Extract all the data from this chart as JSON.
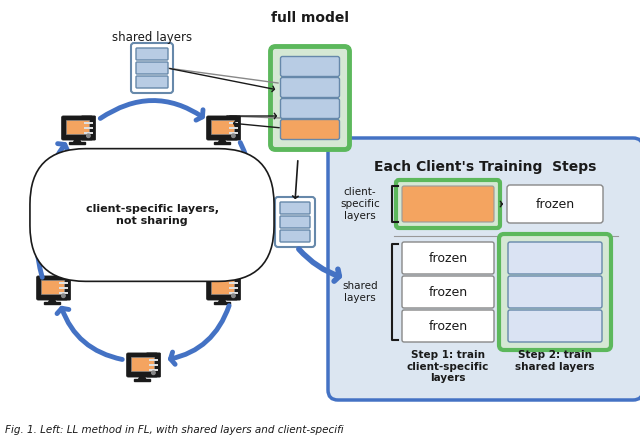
{
  "title_caption": "Fig. 1. Left: LL method in FL, with shared layers and client-specifi",
  "full_model_label": "full model",
  "shared_layers_label": "shared layers",
  "client_specific_label": "client-specific layers,\nnot sharing",
  "each_client_title": "Each Client's Training  Steps",
  "client_specific_layers_label": "client-\nspecific\nlayers",
  "shared_layers_label2": "shared\nlayers",
  "step1_label": "Step 1: train\nclient-specific\nlayers",
  "step2_label": "Step 2: train\nshared layers",
  "frozen_label": "frozen",
  "bg_color": "#ffffff",
  "arrow_blue": "#4472c4",
  "green_border": "#5cb85c",
  "green_fill": "#d5e8d4",
  "orange_fill": "#f4a460",
  "blue_layer": "#b8cce4",
  "blue_layer_light": "#dae3f3",
  "panel_bg": "#dce6f1",
  "panel_border": "#4472c4",
  "black": "#1a1a1a",
  "white": "#ffffff",
  "gray_line": "#aaaaaa"
}
